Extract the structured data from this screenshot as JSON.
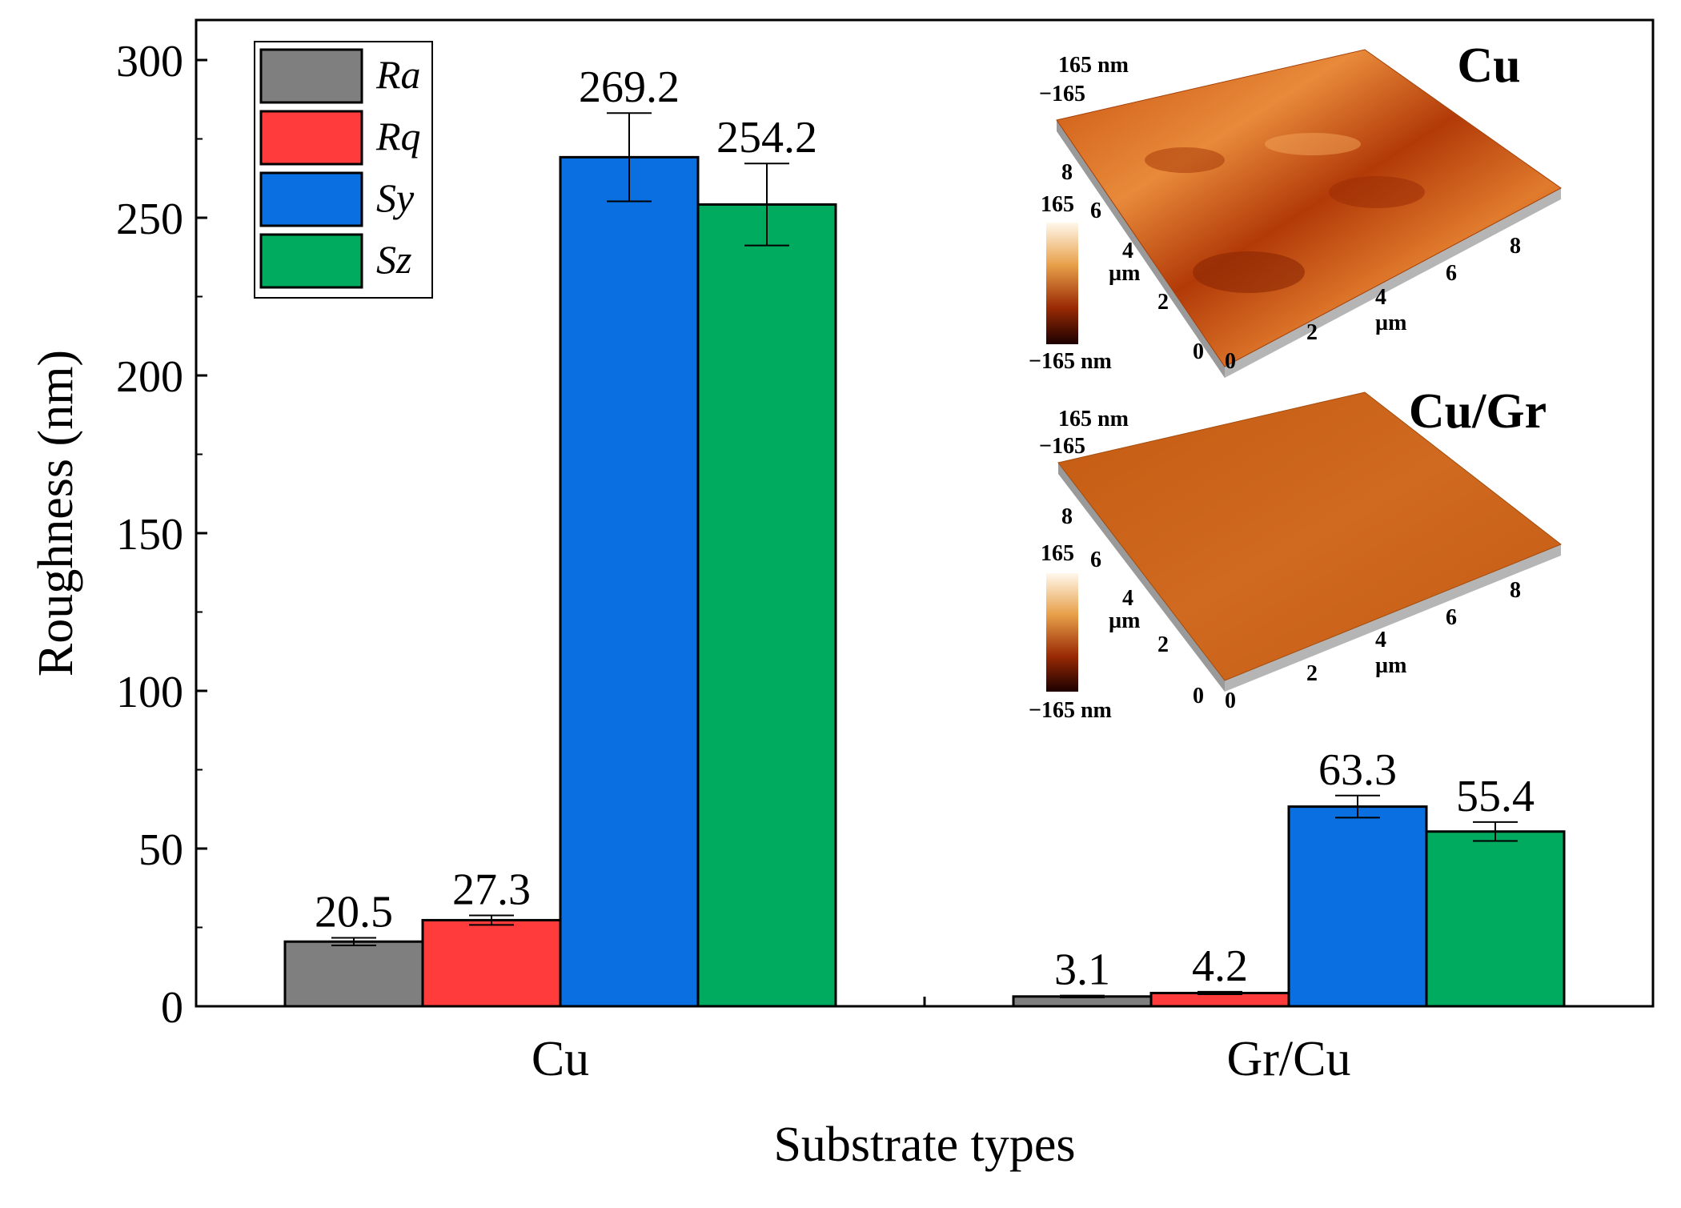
{
  "chart_data": {
    "type": "bar",
    "xlabel": "Substrate types",
    "ylabel": "Roughness (nm)",
    "ylim": [
      0,
      300
    ],
    "yticks": [
      0,
      50,
      100,
      150,
      200,
      250,
      300
    ],
    "categories": [
      "Cu",
      "Gr/Cu"
    ],
    "series": [
      {
        "name": "Ra",
        "color": "#7f7f7f",
        "values": [
          20.5,
          3.1
        ],
        "errors": [
          1.2,
          0.3
        ],
        "labels": [
          "20.5",
          "3.1"
        ]
      },
      {
        "name": "Rq",
        "color": "#ff3b3b",
        "values": [
          27.3,
          4.2
        ],
        "errors": [
          1.5,
          0.4
        ],
        "labels": [
          "27.3",
          "4.2"
        ]
      },
      {
        "name": "Sy",
        "color": "#0a6fe0",
        "values": [
          269.2,
          63.3
        ],
        "errors": [
          14.0,
          3.5
        ],
        "labels": [
          "269.2",
          "63.3"
        ]
      },
      {
        "name": "Sz",
        "color": "#00aa5e",
        "values": [
          254.2,
          55.4
        ],
        "errors": [
          13.0,
          3.0
        ],
        "labels": [
          "254.2",
          "55.4"
        ]
      }
    ],
    "legend_position": "top-left",
    "grid": false,
    "insets": [
      {
        "title": "Cu",
        "scale_top": "165 nm",
        "scale_mid": "−165",
        "colorbar_top": "165",
        "colorbar_bottom": "−165 nm",
        "left_axis_ticks": [
          "8",
          "6",
          "4",
          "2",
          "0"
        ],
        "left_axis_unit": "µm",
        "right_axis_ticks": [
          "0",
          "2",
          "4",
          "6",
          "8"
        ],
        "right_axis_unit": "µm"
      },
      {
        "title": "Cu/Gr",
        "scale_top": "165 nm",
        "scale_mid": "−165",
        "colorbar_top": "165",
        "colorbar_bottom": "−165 nm",
        "left_axis_ticks": [
          "8",
          "6",
          "4",
          "2",
          "0"
        ],
        "left_axis_unit": "µm",
        "right_axis_ticks": [
          "0",
          "2",
          "4",
          "6",
          "8"
        ],
        "right_axis_unit": "µm"
      }
    ]
  }
}
